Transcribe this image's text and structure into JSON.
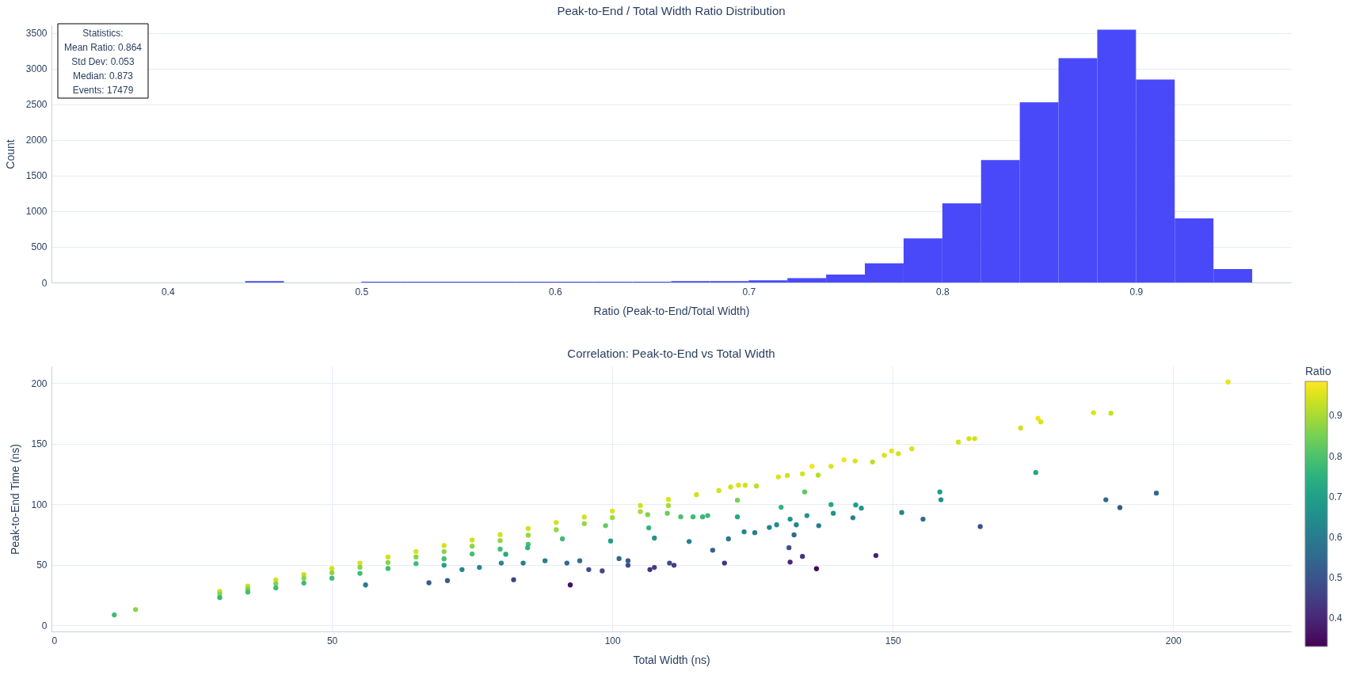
{
  "chart_data": [
    {
      "type": "histogram",
      "title": "Peak-to-End / Total Width Ratio Distribution",
      "xlabel": "Ratio (Peak-to-End/Total Width)",
      "ylabel": "Count",
      "color": "#4949fa",
      "bins": [
        0.34,
        0.36,
        0.38,
        0.4,
        0.42,
        0.44,
        0.46,
        0.48,
        0.5,
        0.52,
        0.54,
        0.56,
        0.58,
        0.6,
        0.62,
        0.64,
        0.66,
        0.68,
        0.7,
        0.72,
        0.74,
        0.76,
        0.78,
        0.8,
        0.82,
        0.84,
        0.86,
        0.88,
        0.9,
        0.92,
        0.94,
        0.96
      ],
      "values": [
        0,
        0,
        0,
        0,
        0,
        20,
        0,
        0,
        10,
        10,
        10,
        10,
        10,
        10,
        10,
        10,
        20,
        20,
        30,
        60,
        110,
        270,
        620,
        1110,
        1720,
        2530,
        3150,
        3550,
        2850,
        900,
        190
      ],
      "xlim": [
        0.34,
        0.98
      ],
      "ylim": [
        0,
        3610
      ],
      "xticks": [
        0.4,
        0.5,
        0.6,
        0.7,
        0.8,
        0.9
      ],
      "yticks": [
        0,
        500,
        1000,
        1500,
        2000,
        2500,
        3000,
        3500
      ],
      "grid": "y",
      "annotations": [
        "Statistics:\nMean Ratio: 0.864\nStd Dev: 0.053\nMedian: 0.873\nEvents: 17479"
      ]
    },
    {
      "type": "scatter",
      "title": "Correlation: Peak-to-End vs Total Width",
      "xlabel": "Total Width (ns)",
      "ylabel": "Peak-to-End Time (ns)",
      "clabel": "Ratio",
      "marker": "circle",
      "grid": true,
      "xlim": [
        0,
        221
      ],
      "ylim": [
        -5,
        214
      ],
      "xticks": [
        0,
        50,
        100,
        150,
        200
      ],
      "yticks": [
        0,
        50,
        100,
        150,
        200
      ],
      "clim": [
        0.33,
        0.985
      ],
      "cticks": [
        0.4,
        0.5,
        0.6,
        0.7,
        0.8,
        0.9
      ],
      "x": [
        11.2,
        15,
        30,
        30,
        30,
        35,
        35,
        35,
        40,
        40,
        40,
        45,
        45,
        45,
        50,
        50,
        50,
        55,
        55,
        55,
        60,
        60,
        60,
        65,
        65,
        65,
        70,
        70,
        70,
        75,
        75,
        75,
        80,
        80,
        80,
        85,
        85,
        85,
        90,
        90,
        95,
        95,
        100,
        100,
        105,
        105,
        110,
        110,
        115,
        119,
        121.1,
        122.5,
        123.7,
        125.7,
        56,
        67.3,
        70.6,
        82.4,
        92.5,
        91.1,
        98.8,
        99.7,
        106.3,
        106.5,
        107.5,
        106.7,
        110.2,
        111,
        101.2,
        102.8,
        95.8,
        98.2,
        94.2,
        91.9,
        88,
        84.1,
        80.2,
        76.3,
        73.2,
        70,
        84.9,
        81,
        107.5,
        102.8,
        112.2,
        109.8,
        129.6,
        131.2,
        133.9,
        135.6,
        136.7,
        139,
        141.3,
        143.3,
        146.4,
        148.5,
        149.8,
        151,
        153.4,
        161.7,
        163.6,
        164.6,
        172.8,
        175.9,
        176.4,
        185.8,
        188.9,
        209.8,
        113.7,
        117.9,
        120,
        120.7,
        122.3,
        122.3,
        123.5,
        125.4,
        128,
        129.3,
        130.1,
        131.5,
        131.7,
        131.7,
        132.8,
        132.4,
        133.9,
        134.3,
        134.7,
        136.4,
        136.8,
        139,
        139.4,
        142.9,
        143.4,
        144.4,
        147,
        151.6,
        155.4,
        158.4,
        158.6,
        165.6,
        175.5,
        188,
        190.5,
        197,
        116.1,
        117,
        114.4
      ],
      "values": [
        8.7,
        13.1,
        28,
        26,
        23,
        32.5,
        30,
        27.5,
        37.5,
        34.5,
        31,
        42,
        39,
        35,
        47,
        43.5,
        39,
        51.5,
        48,
        43,
        56.5,
        52,
        47,
        61,
        56.5,
        51,
        66,
        61,
        55,
        70.5,
        65.5,
        59,
        75,
        70,
        63,
        80,
        74.5,
        67,
        85,
        79,
        89.5,
        84,
        94.5,
        89,
        99,
        94,
        104,
        99,
        108,
        111.4,
        114.3,
        115.8,
        115.8,
        115.1,
        33.4,
        35.2,
        37,
        37.7,
        33.4,
        71.5,
        82.4,
        69.7,
        91.5,
        80.6,
        72.2,
        46.1,
        51.5,
        49.7,
        55.2,
        53.4,
        46.1,
        45,
        53.4,
        51.5,
        53.4,
        51.5,
        51.5,
        47.9,
        46.1,
        49.7,
        64.2,
        58.8,
        47.9,
        49.7,
        89.7,
        92.6,
        122.7,
        123.8,
        125.2,
        131.4,
        124.1,
        131.4,
        136.8,
        135.8,
        135,
        140.5,
        144.1,
        141.9,
        145.9,
        151.4,
        154.3,
        154.3,
        163,
        171,
        168.1,
        175.7,
        175.3,
        201.1,
        69.3,
        62.1,
        51.5,
        71.5,
        103.4,
        89.7,
        77.3,
        76.6,
        80.9,
        83.1,
        97.6,
        64.2,
        52.3,
        87.8,
        83.1,
        74.8,
        57,
        110.3,
        90.7,
        46.8,
        82.4,
        99.8,
        92.6,
        88.9,
        99.5,
        96.9,
        57.7,
        93.3,
        87.8,
        110.3,
        103.8,
        81.7,
        126.3,
        103.8,
        97.3,
        109.3,
        89.7,
        90.7,
        89.7
      ],
      "cvalues": [
        0.78,
        0.87,
        0.93,
        0.87,
        0.77,
        0.93,
        0.86,
        0.79,
        0.94,
        0.86,
        0.78,
        0.93,
        0.87,
        0.78,
        0.94,
        0.87,
        0.78,
        0.94,
        0.87,
        0.78,
        0.94,
        0.87,
        0.78,
        0.94,
        0.87,
        0.78,
        0.94,
        0.87,
        0.79,
        0.94,
        0.87,
        0.79,
        0.94,
        0.88,
        0.79,
        0.94,
        0.88,
        0.79,
        0.94,
        0.88,
        0.94,
        0.88,
        0.95,
        0.89,
        0.94,
        0.9,
        0.95,
        0.9,
        0.94,
        0.94,
        0.94,
        0.95,
        0.94,
        0.92,
        0.6,
        0.52,
        0.52,
        0.46,
        0.36,
        0.78,
        0.83,
        0.7,
        0.86,
        0.76,
        0.67,
        0.43,
        0.47,
        0.45,
        0.55,
        0.52,
        0.48,
        0.46,
        0.57,
        0.56,
        0.61,
        0.61,
        0.64,
        0.63,
        0.63,
        0.71,
        0.76,
        0.73,
        0.45,
        0.48,
        0.8,
        0.84,
        0.95,
        0.94,
        0.94,
        0.97,
        0.91,
        0.95,
        0.97,
        0.95,
        0.92,
        0.95,
        0.96,
        0.94,
        0.95,
        0.94,
        0.94,
        0.94,
        0.94,
        0.97,
        0.95,
        0.95,
        0.93,
        0.96,
        0.61,
        0.53,
        0.43,
        0.59,
        0.85,
        0.73,
        0.63,
        0.61,
        0.63,
        0.64,
        0.75,
        0.49,
        0.4,
        0.67,
        0.63,
        0.56,
        0.43,
        0.82,
        0.67,
        0.34,
        0.6,
        0.72,
        0.66,
        0.62,
        0.69,
        0.67,
        0.39,
        0.62,
        0.56,
        0.7,
        0.65,
        0.49,
        0.72,
        0.55,
        0.51,
        0.55,
        0.77,
        0.78,
        0.78
      ]
    }
  ]
}
